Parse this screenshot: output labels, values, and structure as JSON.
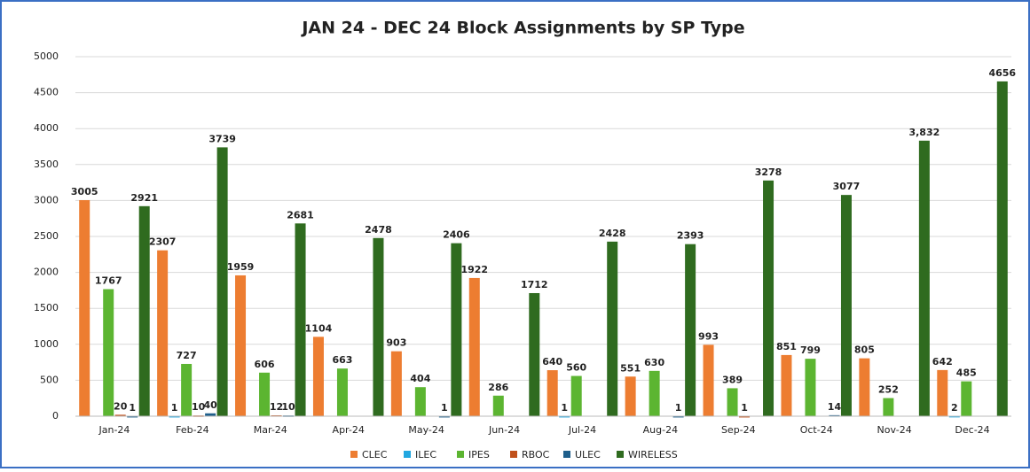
{
  "chart_data": {
    "type": "bar",
    "title": "JAN 24 - DEC 24 Block Assignments by SP Type",
    "categories": [
      "Jan-24",
      "Feb-24",
      "Mar-24",
      "Apr-24",
      "May-24",
      "Jun-24",
      "Jul-24",
      "Aug-24",
      "Sep-24",
      "Oct-24",
      "Nov-24",
      "Dec-24"
    ],
    "series": [
      {
        "name": "CLEC",
        "color": "#ed7d31",
        "values": [
          3005,
          2307,
          1959,
          1104,
          903,
          1922,
          640,
          551,
          993,
          851,
          805,
          642
        ]
      },
      {
        "name": "ILEC",
        "color": "#22a7e0",
        "values": [
          null,
          1,
          null,
          null,
          null,
          null,
          1,
          null,
          null,
          null,
          null,
          2
        ]
      },
      {
        "name": "IPES",
        "color": "#5cb531",
        "values": [
          1767,
          727,
          606,
          663,
          404,
          286,
          560,
          630,
          389,
          799,
          252,
          485
        ]
      },
      {
        "name": "RBOC",
        "color": "#c0501b",
        "values": [
          20,
          10,
          12,
          null,
          null,
          null,
          null,
          null,
          1,
          null,
          null,
          null
        ]
      },
      {
        "name": "ULEC",
        "color": "#1f5f8b",
        "values": [
          1,
          40,
          10,
          null,
          1,
          null,
          null,
          1,
          null,
          14,
          null,
          null
        ]
      },
      {
        "name": "WIRELESS",
        "color": "#2f6b1f",
        "values": [
          2921,
          3739,
          2681,
          2478,
          2406,
          1712,
          2428,
          2393,
          3278,
          3077,
          3832,
          4656
        ],
        "value_labels": [
          "2921",
          "3739",
          "2681",
          "2478",
          "2406",
          "1712",
          "2428",
          "2393",
          "3278",
          "3077",
          "3,832",
          "4656"
        ]
      }
    ],
    "ylim": [
      0,
      5000
    ],
    "yticks": [
      0,
      500,
      1000,
      1500,
      2000,
      2500,
      3000,
      3500,
      4000,
      4500,
      5000
    ],
    "grid": true,
    "legend": "bottom"
  }
}
